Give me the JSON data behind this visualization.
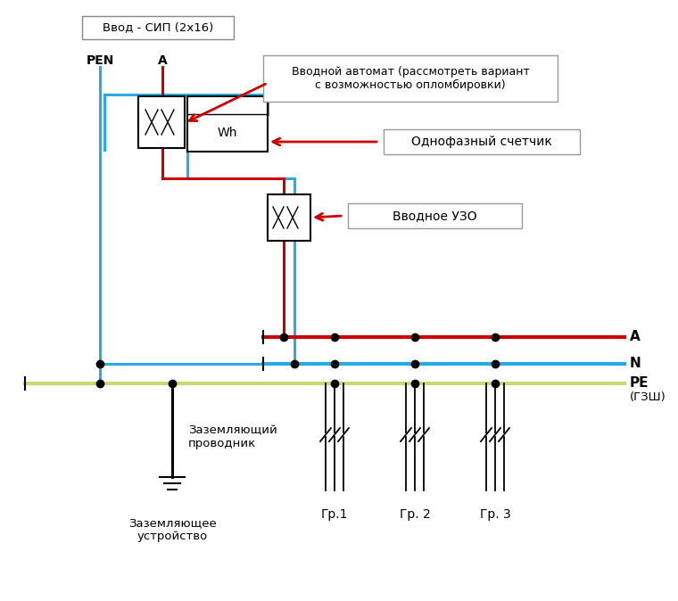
{
  "bg_color": "#ffffff",
  "title_box_text": "Ввод - СИП (2x16)",
  "pen_label": "PEN",
  "a_label": "A",
  "label_vvodnoy": "Вводной автомат (рассмотреть вариант\nс возможностью опломбировки)",
  "label_schetchik": "Однофазный счетчик",
  "label_uzo": "Вводное УЗО",
  "label_zazeml_provod": "Заземляющий\nпроводник",
  "label_zazeml_ustr": "Заземляющее\nустройство",
  "label_A_bus": "А",
  "label_N_bus": "N",
  "label_PE_bus": "PE",
  "label_GZSh": "(ГЗШ)",
  "label_gr1": "Гр.1",
  "label_gr2": "Гр. 2",
  "label_gr3": "Гр. 3",
  "color_pen": "#29abe2",
  "color_a": "#cc0000",
  "color_n": "#29abe2",
  "color_pe": "#c8d96f",
  "color_red": "#cc0000",
  "color_blue": "#29abe2",
  "color_black": "#000000",
  "color_arrow": "#cc0000",
  "lw_main": 2.2,
  "lw_bus": 3.0,
  "dot_size": 6
}
